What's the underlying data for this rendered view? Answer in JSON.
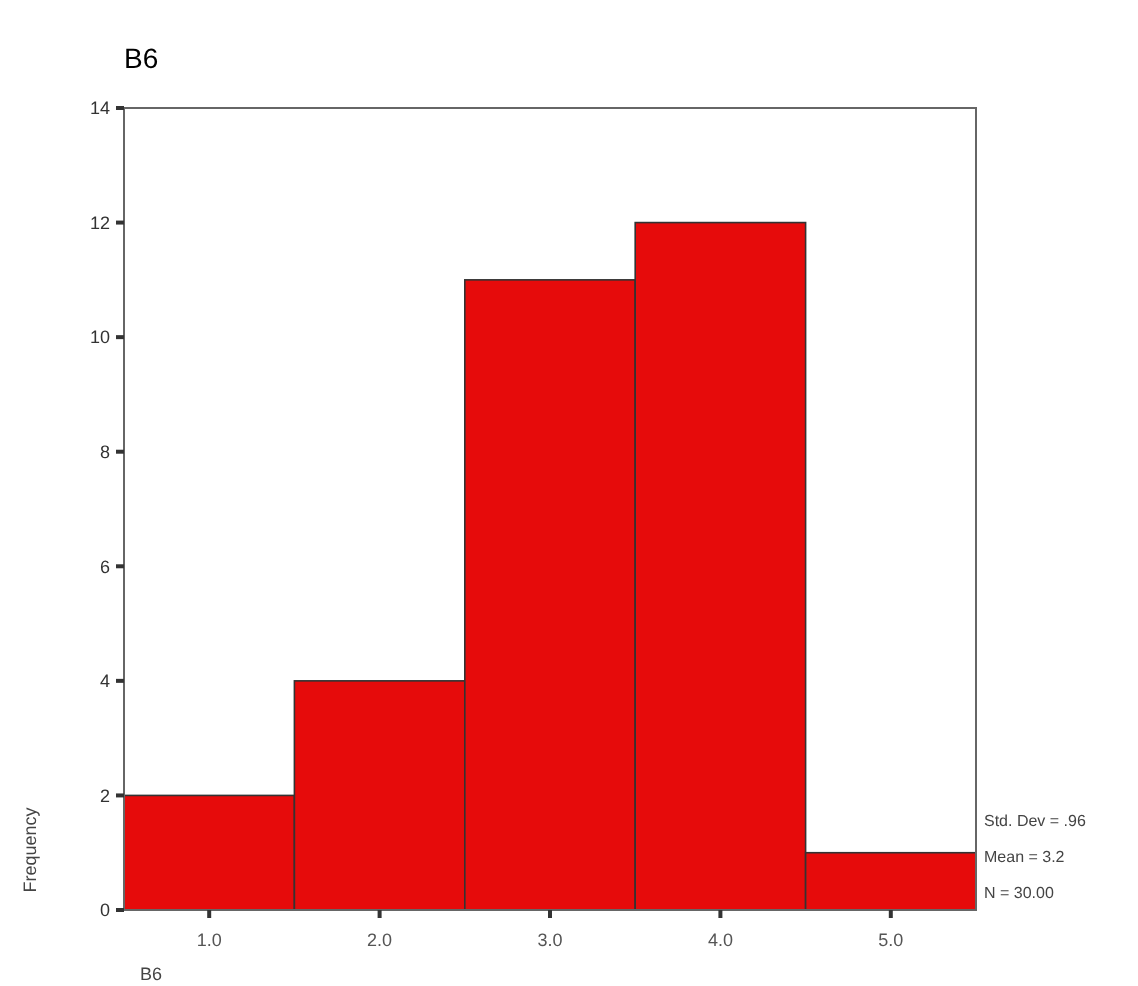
{
  "chart_data": {
    "type": "histogram",
    "title": "B6",
    "xlabel": "B6",
    "ylabel": "Frequency",
    "bins": [
      0.5,
      1.5,
      2.5,
      3.5,
      4.5,
      5.5
    ],
    "values": [
      2,
      4,
      11,
      12,
      1
    ],
    "color": "#e60b0b",
    "xlim": [
      0.5,
      5.5
    ],
    "xticks": [
      {
        "value": 1,
        "label": "1.0"
      },
      {
        "value": 2,
        "label": "2.0"
      },
      {
        "value": 3,
        "label": "3.0"
      },
      {
        "value": 4,
        "label": "4.0"
      },
      {
        "value": 5,
        "label": "5.0"
      }
    ],
    "ylim": [
      0,
      14
    ],
    "yticks": [
      0,
      2,
      4,
      6,
      8,
      10,
      12,
      14
    ],
    "grid": false,
    "annotations": [
      "Std. Dev = .96",
      "Mean = 3.2",
      "N = 30.00"
    ]
  }
}
